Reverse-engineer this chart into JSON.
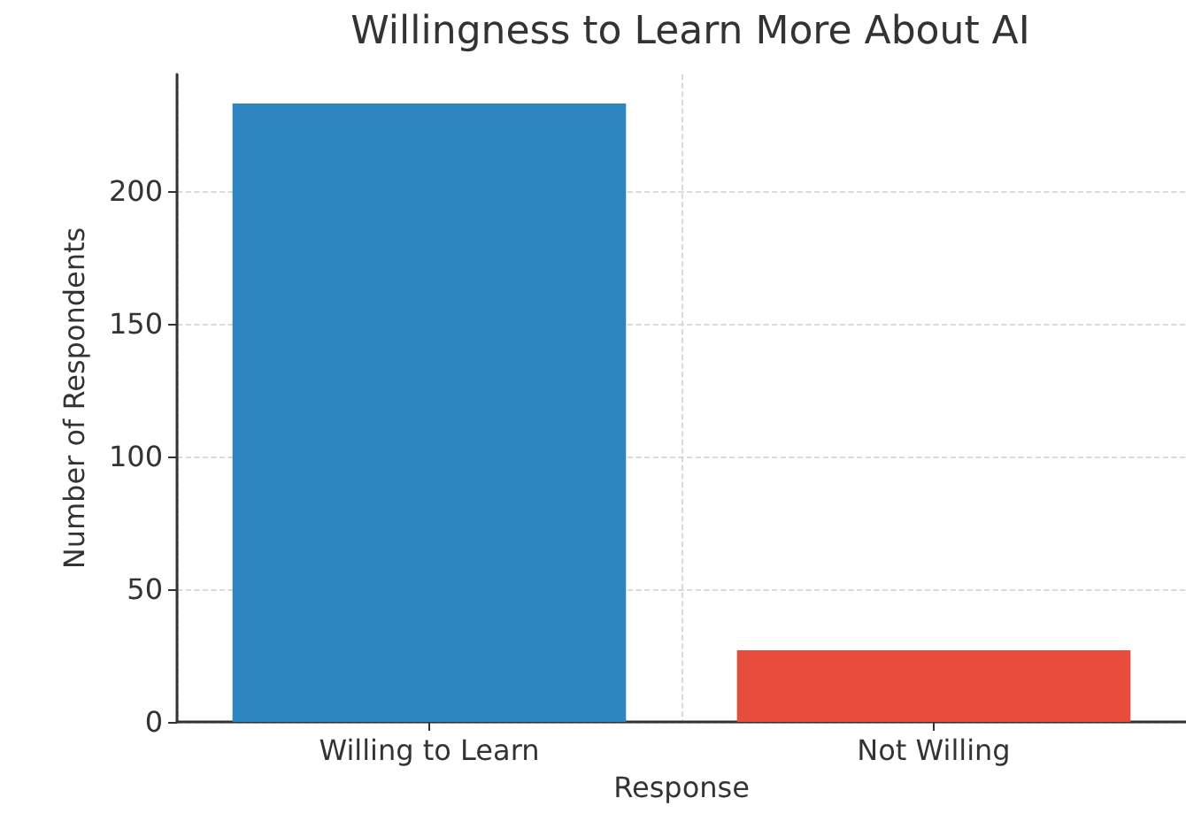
{
  "chart_data": {
    "type": "bar",
    "title": "Willingness to Learn More About AI",
    "xlabel": "Response",
    "ylabel": "Number of Respondents",
    "categories": [
      "Willing to Learn",
      "Not Willing"
    ],
    "values": [
      233,
      27
    ],
    "colors": [
      "#2e86c1",
      "#e74c3c"
    ],
    "ylim": [
      0,
      244
    ],
    "yticks": [
      0,
      50,
      100,
      150,
      200
    ],
    "grid": true
  }
}
